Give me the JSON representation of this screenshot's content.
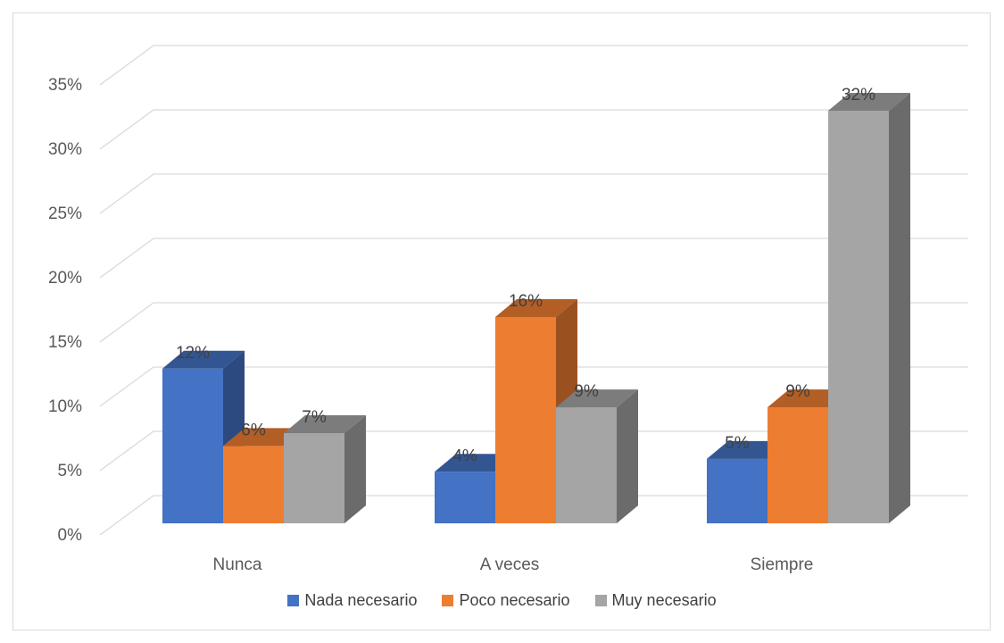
{
  "chart_data": {
    "type": "bar",
    "categories": [
      "Nunca",
      "A veces",
      "Siempre"
    ],
    "series": [
      {
        "name": "Nada necesario",
        "values": [
          12,
          4,
          5
        ],
        "labels": [
          "12%",
          "4%",
          "5%"
        ],
        "color": "#4472C4"
      },
      {
        "name": "Poco necesario",
        "values": [
          6,
          16,
          9
        ],
        "labels": [
          "6%",
          "16%",
          "9%"
        ],
        "color": "#ED7D31"
      },
      {
        "name": "Muy necesario",
        "values": [
          7,
          9,
          32
        ],
        "labels": [
          "7%",
          "9%",
          "32%"
        ],
        "color": "#A5A5A5"
      }
    ],
    "y_ticks": [
      "0%",
      "5%",
      "10%",
      "15%",
      "20%",
      "25%",
      "30%",
      "35%"
    ],
    "ylim": [
      0,
      35
    ],
    "grid": true,
    "legend_position": "bottom",
    "style": "3d-clustered-column"
  }
}
